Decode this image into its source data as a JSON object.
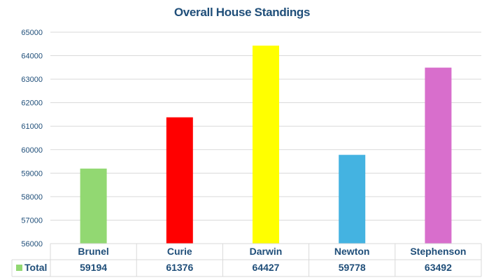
{
  "chart_data": {
    "type": "bar",
    "title": "Overall House Standings",
    "xlabel": "",
    "ylabel": "",
    "ylim": [
      56000,
      65000
    ],
    "yticks": [
      56000,
      57000,
      58000,
      59000,
      60000,
      61000,
      62000,
      63000,
      64000,
      65000
    ],
    "grid": true,
    "legend": "data-table-left",
    "categories": [
      "Brunel",
      "Curie",
      "Darwin",
      "Newton",
      "Stephenson"
    ],
    "series": [
      {
        "name": "Total",
        "values": [
          59194,
          61376,
          64427,
          59778,
          63492
        ],
        "colors": [
          "#92d872",
          "#ff0000",
          "#ffff00",
          "#44b3e1",
          "#d86ecc"
        ]
      }
    ]
  }
}
